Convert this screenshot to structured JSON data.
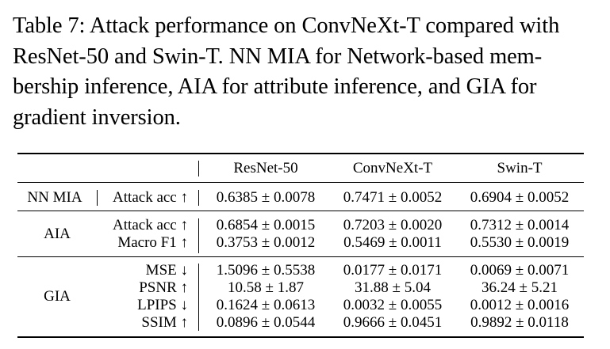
{
  "caption": {
    "lines": [
      "Table 7: Attack performance on ConvNeXt-T compared with",
      "ResNet-50 and Swin-T. NN MIA for Network-based mem-",
      "bership inference, AIA for attribute inference, and GIA for",
      "gradient inversion."
    ]
  },
  "table": {
    "columns": [
      "ResNet-50",
      "ConvNeXt-T",
      "Swin-T"
    ],
    "groups": [
      {
        "name": "NN MIA",
        "rows": [
          {
            "metric": "Attack acc ↑",
            "values": [
              "0.6385 ± 0.0078",
              "0.7471 ± 0.0052",
              "0.6904 ± 0.0052"
            ]
          }
        ]
      },
      {
        "name": "AIA",
        "rows": [
          {
            "metric": "Attack acc ↑",
            "values": [
              "0.6854 ± 0.0015",
              "0.7203 ± 0.0020",
              "0.7312 ± 0.0014"
            ]
          },
          {
            "metric": "Macro F1 ↑",
            "values": [
              "0.3753 ± 0.0012",
              "0.5469 ± 0.0011",
              "0.5530 ± 0.0019"
            ]
          }
        ]
      },
      {
        "name": "GIA",
        "rows": [
          {
            "metric": "MSE ↓",
            "values": [
              "1.5096 ± 0.5538",
              "0.0177 ± 0.0171",
              "0.0069 ± 0.0071"
            ]
          },
          {
            "metric": "PSNR ↑",
            "values": [
              "10.58 ± 1.87",
              "31.88 ± 5.04",
              "36.24 ± 5.21"
            ]
          },
          {
            "metric": "LPIPS ↓",
            "values": [
              "0.1624 ± 0.0613",
              "0.0032 ± 0.0055",
              "0.0012 ± 0.0016"
            ]
          },
          {
            "metric": "SSIM ↑",
            "values": [
              "0.0896 ± 0.0544",
              "0.9666 ± 0.0451",
              "0.9892 ± 0.0118"
            ]
          }
        ]
      }
    ]
  }
}
